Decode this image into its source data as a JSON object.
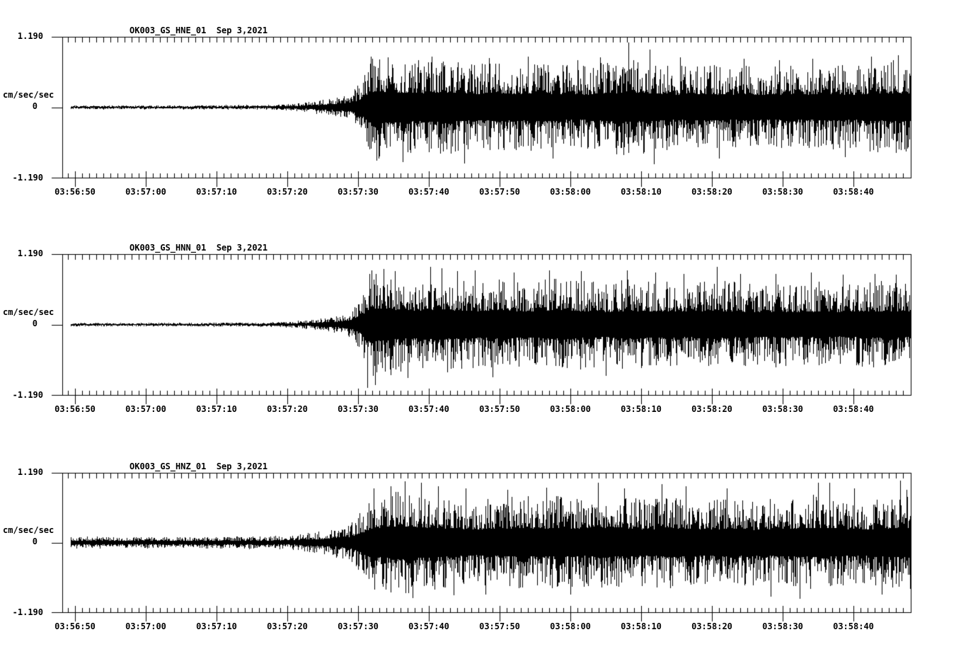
{
  "figure": {
    "background": "#ffffff",
    "trace_color": "#000000",
    "axis_color": "#000000",
    "text_color": "#000000",
    "description": "Three-channel strong-motion seismogram display, station OK003, Sep 3 2021"
  },
  "chart_data": [
    {
      "type": "line",
      "subtype": "seismogram",
      "title": "OK003_GS_HNE_01  Sep 3,2021",
      "station_label": "OK003_GS_HNE_01",
      "date_label": "Sep 3,2021",
      "ylabel": "cm/sec/sec",
      "ylim": [
        -1.19,
        1.19
      ],
      "ytick_labels": [
        "1.190",
        "0",
        "-1.190"
      ],
      "xtick_labels": [
        "03:56:50",
        "03:57:00",
        "03:57:10",
        "03:57:20",
        "03:57:30",
        "03:57:40",
        "03:57:50",
        "03:58:00",
        "03:58:10",
        "03:58:20",
        "03:58:30",
        "03:58:40"
      ],
      "x_left_edge_time": "03:56:48",
      "x_right_edge_time": "03:58:48",
      "major_tick_sec": 10,
      "minor_tick_sec": 1,
      "units": "cm/sec/sec",
      "envelope_note": "t = seconds after 03:56:48, amp = typical peak amplitude in cm/sec/sec",
      "envelope": {
        "t": [
          0,
          10,
          20,
          28,
          31,
          33,
          35,
          37,
          39,
          41,
          42.5,
          43.5,
          45,
          47,
          50,
          53,
          56,
          59,
          62,
          65,
          68,
          71,
          74,
          77,
          80,
          82,
          85,
          88,
          91,
          94,
          97,
          100,
          103,
          106,
          109,
          112,
          115,
          118,
          120
        ],
        "amp": [
          0.035,
          0.032,
          0.035,
          0.04,
          0.05,
          0.065,
          0.09,
          0.13,
          0.17,
          0.24,
          0.45,
          0.8,
          0.88,
          0.82,
          0.76,
          0.82,
          0.78,
          0.72,
          0.78,
          0.74,
          0.78,
          0.72,
          0.7,
          0.76,
          0.82,
          0.8,
          0.74,
          0.7,
          0.74,
          0.68,
          0.72,
          0.68,
          0.72,
          0.7,
          0.74,
          0.7,
          0.76,
          0.8,
          0.78
        ]
      },
      "spikes": [
        [
          43.8,
          0.86
        ],
        [
          44.6,
          -0.9
        ],
        [
          46.2,
          0.84
        ],
        [
          48.3,
          -0.92
        ],
        [
          50.5,
          0.8
        ],
        [
          52.4,
          0.85
        ],
        [
          57.0,
          -0.95
        ],
        [
          60.5,
          0.83
        ],
        [
          66.0,
          0.86
        ],
        [
          69.5,
          -0.86
        ],
        [
          73.0,
          0.8
        ],
        [
          76.2,
          0.84
        ],
        [
          80.2,
          1.09
        ],
        [
          83.2,
          0.97
        ],
        [
          83.8,
          -0.96
        ],
        [
          87.5,
          0.84
        ],
        [
          93.0,
          -0.86
        ],
        [
          96.5,
          0.82
        ],
        [
          101.5,
          0.8
        ],
        [
          106.2,
          0.82
        ],
        [
          110.8,
          -0.84
        ],
        [
          114.5,
          0.85
        ],
        [
          118.3,
          0.88
        ]
      ],
      "seed": 101
    },
    {
      "type": "line",
      "subtype": "seismogram",
      "title": "OK003_GS_HNN_01  Sep 3,2021",
      "station_label": "OK003_GS_HNN_01",
      "date_label": "Sep 3,2021",
      "ylabel": "cm/sec/sec",
      "ylim": [
        -1.19,
        1.19
      ],
      "ytick_labels": [
        "1.190",
        "0",
        "-1.190"
      ],
      "xtick_labels": [
        "03:56:50",
        "03:57:00",
        "03:57:10",
        "03:57:20",
        "03:57:30",
        "03:57:40",
        "03:57:50",
        "03:58:00",
        "03:58:10",
        "03:58:20",
        "03:58:30",
        "03:58:40"
      ],
      "x_left_edge_time": "03:56:48",
      "x_right_edge_time": "03:58:48",
      "major_tick_sec": 10,
      "minor_tick_sec": 1,
      "units": "cm/sec/sec",
      "envelope_note": "t = seconds after 03:56:48, amp = typical peak amplitude in cm/sec/sec",
      "envelope": {
        "t": [
          0,
          10,
          20,
          28,
          31,
          33,
          35,
          37,
          39,
          41,
          42.5,
          43.5,
          45,
          47,
          50,
          53,
          56,
          59,
          62,
          65,
          68,
          71,
          74,
          77,
          80,
          83,
          86,
          89,
          92,
          95,
          98,
          101,
          104,
          107,
          110,
          113,
          116,
          120
        ],
        "amp": [
          0.03,
          0.028,
          0.032,
          0.036,
          0.045,
          0.06,
          0.08,
          0.11,
          0.15,
          0.22,
          0.5,
          0.85,
          0.9,
          0.84,
          0.78,
          0.84,
          0.78,
          0.74,
          0.78,
          0.72,
          0.76,
          0.8,
          0.74,
          0.7,
          0.76,
          0.72,
          0.74,
          0.7,
          0.76,
          0.72,
          0.68,
          0.72,
          0.68,
          0.72,
          0.68,
          0.72,
          0.74,
          0.72
        ]
      },
      "spikes": [
        [
          43.3,
          -1.06
        ],
        [
          43.9,
          0.92
        ],
        [
          44.4,
          -1.02
        ],
        [
          45.6,
          0.94
        ],
        [
          47.2,
          0.9
        ],
        [
          49.0,
          -0.9
        ],
        [
          52.2,
          0.97
        ],
        [
          53.8,
          0.95
        ],
        [
          56.0,
          0.9
        ],
        [
          58.5,
          0.92
        ],
        [
          61.0,
          -0.88
        ],
        [
          64.0,
          0.88
        ],
        [
          69.0,
          0.92
        ],
        [
          73.5,
          0.9
        ],
        [
          77.0,
          -0.86
        ],
        [
          80.0,
          0.92
        ],
        [
          84.0,
          0.88
        ],
        [
          88.0,
          0.86
        ],
        [
          92.7,
          0.97
        ],
        [
          96.0,
          0.86
        ],
        [
          101.0,
          0.86
        ],
        [
          106.0,
          0.88
        ],
        [
          110.5,
          0.84
        ],
        [
          115.0,
          0.86
        ],
        [
          118.0,
          0.84
        ]
      ],
      "seed": 202
    },
    {
      "type": "line",
      "subtype": "seismogram",
      "title": "OK003_GS_HNZ_01  Sep 3,2021",
      "station_label": "OK003_GS_HNZ_01",
      "date_label": "Sep 3,2021",
      "ylabel": "cm/sec/sec",
      "ylim": [
        -1.19,
        1.19
      ],
      "ytick_labels": [
        "1.190",
        "0",
        "-1.190"
      ],
      "xtick_labels": [
        "03:56:50",
        "03:57:00",
        "03:57:10",
        "03:57:20",
        "03:57:30",
        "03:57:40",
        "03:57:50",
        "03:58:00",
        "03:58:10",
        "03:58:20",
        "03:58:30",
        "03:58:40"
      ],
      "x_left_edge_time": "03:56:48",
      "x_right_edge_time": "03:58:48",
      "major_tick_sec": 10,
      "minor_tick_sec": 1,
      "units": "cm/sec/sec",
      "envelope_note": "t = seconds after 03:56:48, amp = typical peak amplitude in cm/sec/sec",
      "envelope": {
        "t": [
          0,
          10,
          20,
          26,
          30,
          33,
          35,
          37,
          39,
          41,
          42.5,
          44,
          46,
          48,
          50,
          53,
          56,
          59,
          62,
          65,
          68,
          71,
          74,
          77,
          80,
          83,
          86,
          89,
          92,
          95,
          98,
          101,
          104,
          107,
          110,
          113,
          116,
          119,
          120
        ],
        "amp": [
          0.1,
          0.095,
          0.1,
          0.105,
          0.11,
          0.13,
          0.16,
          0.2,
          0.26,
          0.33,
          0.55,
          0.8,
          0.88,
          0.92,
          0.86,
          0.8,
          0.76,
          0.72,
          0.76,
          0.8,
          0.76,
          0.8,
          0.76,
          0.82,
          0.78,
          0.74,
          0.8,
          0.76,
          0.72,
          0.76,
          0.72,
          0.76,
          0.8,
          0.82,
          0.76,
          0.72,
          0.76,
          0.84,
          0.82
        ]
      },
      "spikes": [
        [
          44.2,
          0.92
        ],
        [
          46.6,
          0.96
        ],
        [
          48.6,
          1.04
        ],
        [
          49.7,
          -0.94
        ],
        [
          50.9,
          1.02
        ],
        [
          53.3,
          0.96
        ],
        [
          55.5,
          -0.9
        ],
        [
          57.2,
          0.92
        ],
        [
          60.0,
          -0.88
        ],
        [
          63.1,
          0.9
        ],
        [
          68.6,
          0.94
        ],
        [
          72.0,
          -0.88
        ],
        [
          75.9,
          1.02
        ],
        [
          79.6,
          0.92
        ],
        [
          84.9,
          1.0
        ],
        [
          88.3,
          0.96
        ],
        [
          94.1,
          0.92
        ],
        [
          100.3,
          -0.92
        ],
        [
          104.4,
          -0.95
        ],
        [
          107.0,
          1.02
        ],
        [
          108.6,
          1.02
        ],
        [
          112.1,
          0.92
        ],
        [
          116.0,
          -0.88
        ],
        [
          118.6,
          1.06
        ],
        [
          119.5,
          0.9
        ]
      ],
      "seed": 303
    }
  ]
}
